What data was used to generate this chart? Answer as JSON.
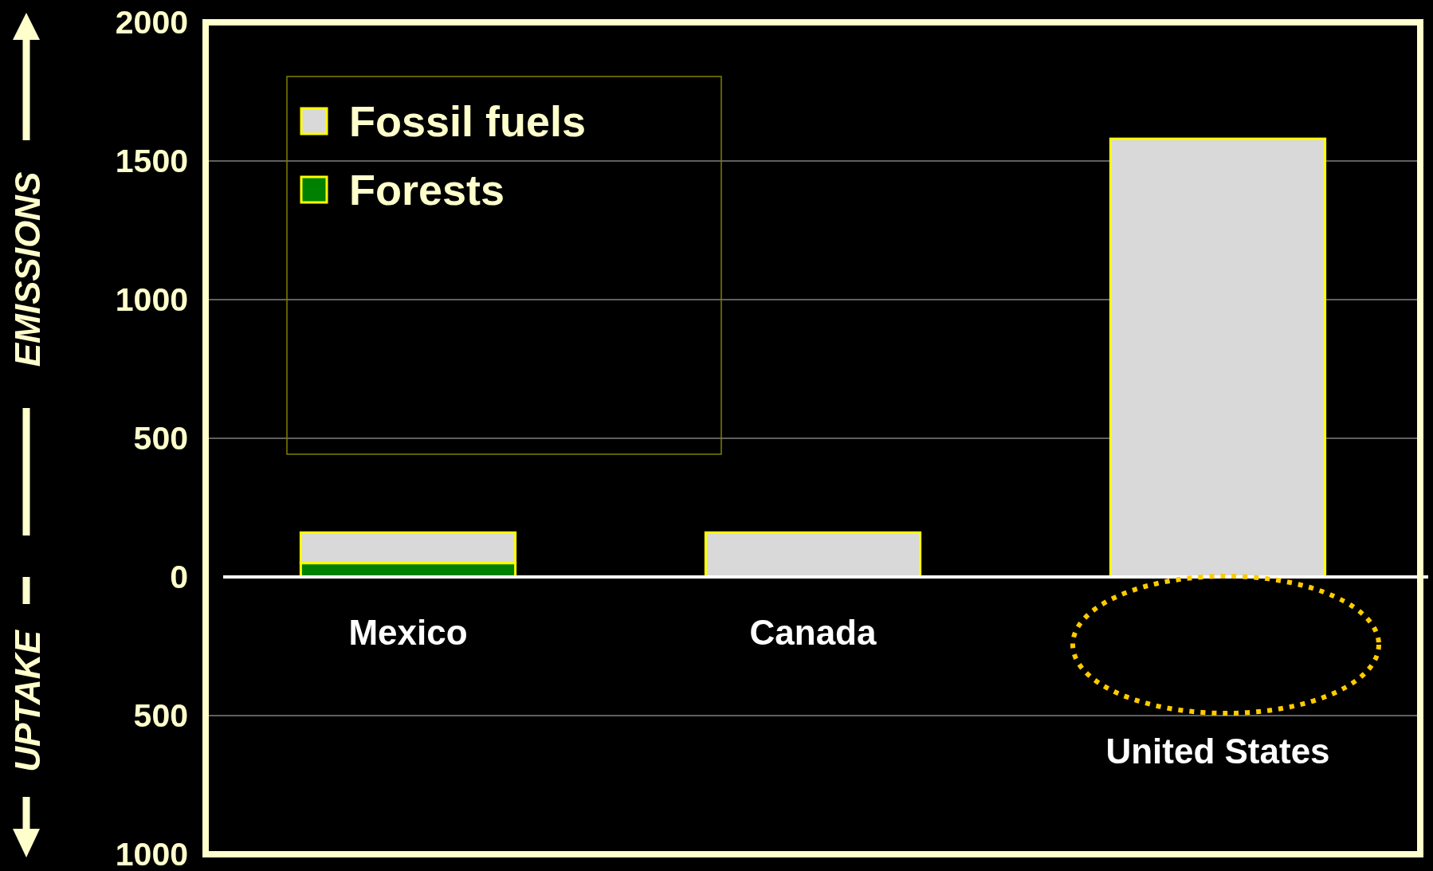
{
  "chart_data": {
    "type": "bar",
    "stacked": true,
    "categories": [
      "Mexico",
      "Canada",
      "United States"
    ],
    "series": [
      {
        "name": "Forests",
        "color": "#008000",
        "values": [
          50,
          null,
          null
        ]
      },
      {
        "name": "Fossil fuels",
        "color": "#d9d9d9",
        "values": [
          110,
          160,
          1580
        ]
      }
    ],
    "ylim": [
      -1000,
      2000
    ],
    "yticks": [
      {
        "value": -1000,
        "label": "1000"
      },
      {
        "value": -500,
        "label": "500"
      },
      0,
      500,
      1000,
      1500,
      2000
    ],
    "grid": "y",
    "legend": "top left",
    "annotations": [
      "EMISSIONS",
      "UPTAKE"
    ]
  }
}
